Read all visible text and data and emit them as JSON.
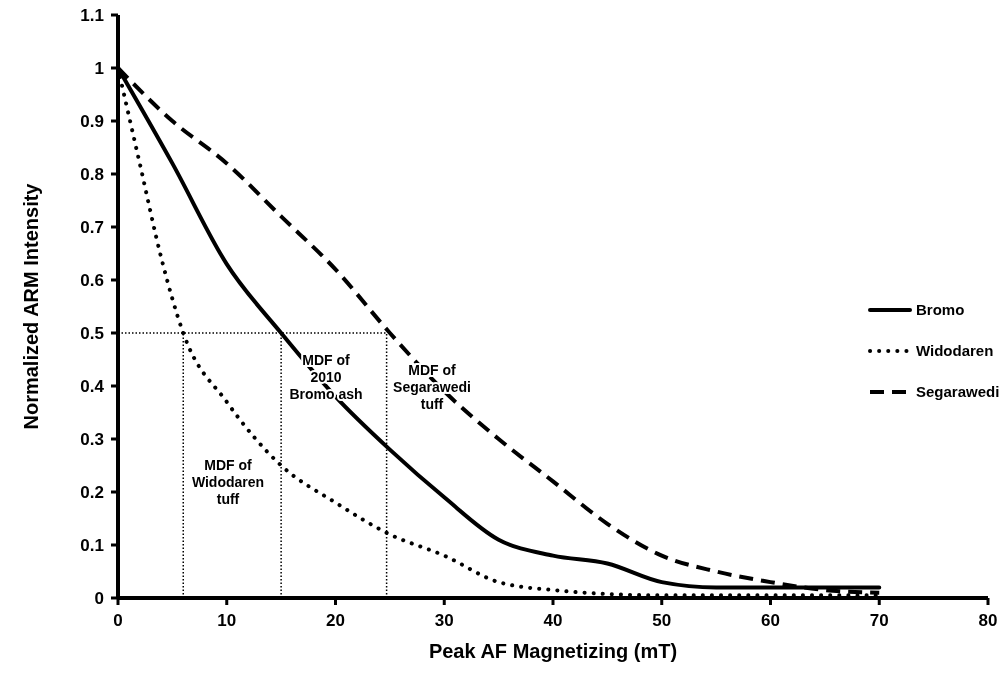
{
  "chart_data": {
    "type": "line",
    "xlabel": "Peak AF Magnetizing (mT)",
    "ylabel": "Normalized ARM Intensity",
    "xlim": [
      0,
      80
    ],
    "xticks": [
      0,
      10,
      20,
      30,
      40,
      50,
      60,
      70,
      80
    ],
    "ylim": [
      0,
      1.1
    ],
    "yticks": [
      0,
      0.1,
      0.2,
      0.3,
      0.4,
      0.5,
      0.6,
      0.7,
      0.8,
      0.9,
      1,
      1.1
    ],
    "grid": false,
    "legend": "right",
    "marker": "none",
    "series": [
      {
        "name": "Bromo",
        "color": "#000000",
        "line_style": "solid",
        "x": [
          0,
          5,
          10,
          15,
          20,
          25,
          30,
          35,
          40,
          45,
          50,
          55,
          60,
          70
        ],
        "values": [
          1,
          0.82,
          0.63,
          0.5,
          0.38,
          0.28,
          0.19,
          0.11,
          0.08,
          0.065,
          0.03,
          0.02,
          0.02,
          0.02
        ]
      },
      {
        "name": "Widodaren",
        "color": "#000000",
        "line_style": "dotted",
        "x": [
          0,
          2,
          4,
          6,
          10,
          15,
          20,
          25,
          30,
          35,
          40,
          50,
          70
        ],
        "values": [
          1,
          0.82,
          0.64,
          0.5,
          0.37,
          0.25,
          0.18,
          0.12,
          0.08,
          0.03,
          0.015,
          0.005,
          0.005
        ]
      },
      {
        "name": "Segarawedi",
        "color": "#000000",
        "line_style": "dashed",
        "x": [
          0,
          5,
          10,
          15,
          20,
          25,
          30,
          35,
          40,
          45,
          50,
          55,
          60,
          65,
          70
        ],
        "values": [
          1,
          0.9,
          0.82,
          0.72,
          0.62,
          0.5,
          0.39,
          0.3,
          0.22,
          0.14,
          0.08,
          0.05,
          0.03,
          0.015,
          0.01
        ]
      },
      {
        "color": "#000000",
        "line_style": "dotted",
        "x": [
          0,
          24.7
        ],
        "values": [
          0.5,
          0.5
        ]
      },
      {
        "color": "#000000",
        "line_style": "dotted",
        "x": [
          6,
          6
        ],
        "values": [
          0,
          0.5
        ]
      },
      {
        "color": "#000000",
        "line_style": "dotted",
        "x": [
          15,
          15
        ],
        "values": [
          0,
          0.5
        ]
      },
      {
        "color": "#000000",
        "line_style": "dotted",
        "x": [
          24.7,
          24.7
        ],
        "values": [
          0,
          0.5
        ]
      }
    ],
    "annotations": [
      "MDF of\nWidodaren\ntuff",
      "MDF of\n2010\nBromo ash",
      "MDF of\nSegarawedi\ntuff"
    ]
  }
}
